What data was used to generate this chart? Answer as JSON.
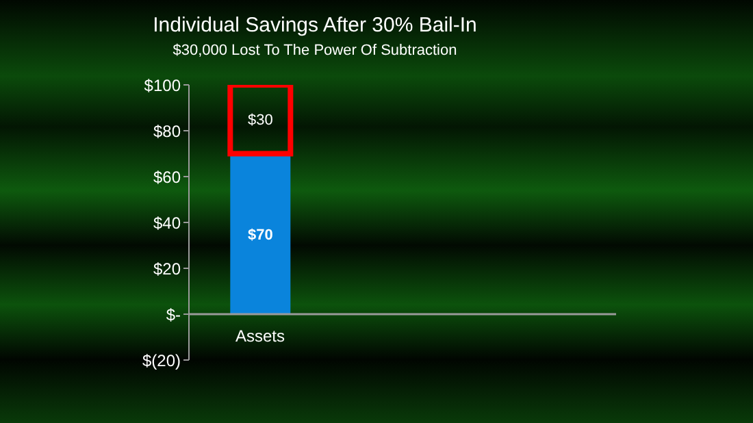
{
  "chart_data": {
    "type": "bar",
    "title": "Individual Savings After 30% Bail-In",
    "subtitle": "$30,000 Lost To The Power Of Subtraction",
    "categories": [
      "Assets",
      null,
      null
    ],
    "stacked": true,
    "series": [
      {
        "color": "#0a84dc",
        "values": [
          70,
          null,
          null
        ],
        "value_labels": [
          "$70",
          null,
          null
        ]
      },
      {
        "color": "#ff0000",
        "values": [
          30,
          null,
          null
        ],
        "value_labels": [
          "$30",
          null,
          null
        ]
      }
    ],
    "ylim": [
      -20,
      100
    ],
    "yticks": [
      {
        "value": -20,
        "label": "$(20)"
      },
      {
        "value": 0,
        "label": "$-"
      },
      {
        "value": 20,
        "label": "$20"
      },
      {
        "value": 40,
        "label": "$40"
      },
      {
        "value": 60,
        "label": "$60"
      },
      {
        "value": 80,
        "label": "$80"
      },
      {
        "value": 100,
        "label": "$100"
      }
    ]
  }
}
